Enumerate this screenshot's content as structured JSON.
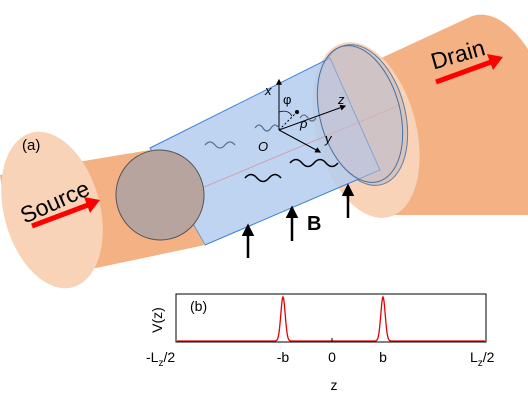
{
  "panel_a": {
    "label": "(a)",
    "source_label": "Source",
    "drain_label": "Drain",
    "field_label": "B",
    "axes": {
      "x": "x",
      "y": "y",
      "z": "z",
      "origin": "O",
      "phi": "φ",
      "rho": "ρ"
    }
  },
  "panel_b": {
    "label": "(b)",
    "ylabel": "V(z)",
    "xlabel": "z",
    "ticks": {
      "left": "-L",
      "left_sub": "z",
      "left_tail": "/2",
      "neg_b": "-b",
      "zero": "0",
      "pos_b": "b",
      "right": "L",
      "right_sub": "z",
      "right_tail": "/2"
    }
  },
  "colors": {
    "lead_body": "#f4b183",
    "lead_face": "#f8cbad",
    "lead_cap": "#f9d3b8",
    "tube_fill": "#b4cdee",
    "tube_edge": "#3b7dd8",
    "arrow_red": "#ff0000",
    "potential_red": "#e60000"
  }
}
